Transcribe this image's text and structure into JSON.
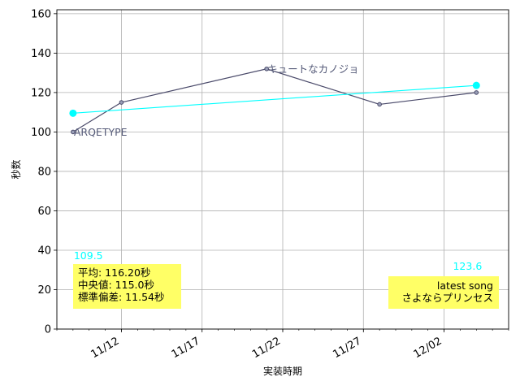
{
  "chart_data": {
    "type": "line",
    "xlabel": "実装時期",
    "ylabel": "秒数",
    "ylim": [
      0,
      162
    ],
    "yticks": [
      0,
      20,
      40,
      60,
      80,
      100,
      120,
      140,
      160
    ],
    "xlim": [
      "2023-11-08",
      "2023-12-06"
    ],
    "xticks": [
      {
        "date": "2023-11-12",
        "label": "11/12"
      },
      {
        "date": "2023-11-17",
        "label": "11/17"
      },
      {
        "date": "2023-11-22",
        "label": "11/22"
      },
      {
        "date": "2023-11-27",
        "label": "11/27"
      },
      {
        "date": "2023-12-02",
        "label": "12/02"
      }
    ],
    "grid": true,
    "series": [
      {
        "color": "#4a4a6a",
        "points": [
          {
            "x": "2023-11-09",
            "y": 100
          },
          {
            "x": "2023-11-12",
            "y": 115
          },
          {
            "x": "2023-11-21",
            "y": 132
          },
          {
            "x": "2023-11-28",
            "y": 114
          },
          {
            "x": "2023-12-04",
            "y": 120
          }
        ]
      },
      {
        "color": "#00ffff",
        "points": [
          {
            "x": "2023-11-09",
            "y": 109.5
          },
          {
            "x": "2023-12-04",
            "y": 123.6
          }
        ]
      }
    ],
    "point_labels": [
      {
        "text": "ARQETYPE",
        "x": "2023-11-09",
        "y": 100
      },
      {
        "text": "キュートなカノジョ",
        "x": "2023-11-21",
        "y": 132
      }
    ],
    "trend_labels": [
      {
        "text": "109.5",
        "x": "2023-11-09",
        "y": 109.5
      },
      {
        "text": "123.6",
        "x": "2023-12-04",
        "y": 123.6
      }
    ],
    "stats_box": {
      "lines": [
        "平均: 116.20秒",
        "中央値: 115.0秒",
        "標準偏差:  11.54秒"
      ],
      "color": "#ffff66"
    },
    "latest_box": {
      "lines": [
        "latest song",
        "さよならプリンセス"
      ],
      "color": "#ffff66"
    }
  }
}
